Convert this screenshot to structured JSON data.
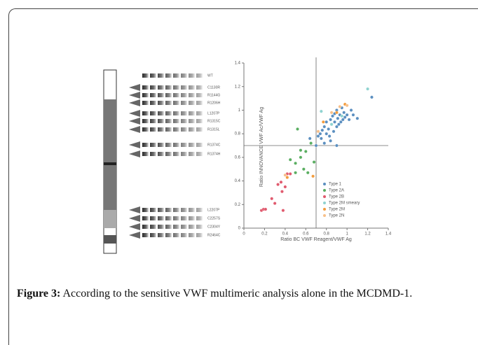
{
  "chart_data": {
    "type": "scatter",
    "xlabel": "Ratio BC VWF Reagent/VWF Ag",
    "ylabel": "Ratio INNOVANCE VWF Ac/VWF Ag",
    "xlim": [
      0,
      1.4
    ],
    "ylim": [
      0,
      1.4
    ],
    "xticks": [
      0,
      0.2,
      0.4,
      0.6,
      0.8,
      1,
      1.2,
      1.4
    ],
    "yticks": [
      0,
      0.2,
      0.4,
      0.6,
      0.8,
      1,
      1.2,
      1.4
    ],
    "reference_lines": {
      "x": 0.7,
      "y": 0.7
    },
    "series": [
      {
        "name": "Type 1",
        "color": "#5b8fc0",
        "x": [
          0.7,
          0.72,
          0.74,
          0.75,
          0.76,
          0.78,
          0.8,
          0.8,
          0.82,
          0.83,
          0.84,
          0.85,
          0.86,
          0.87,
          0.88,
          0.88,
          0.9,
          0.9,
          0.91,
          0.92,
          0.93,
          0.94,
          0.95,
          0.96,
          0.97,
          0.98,
          1.0,
          1.02,
          1.04,
          1.06,
          1.1,
          1.24,
          0.78,
          0.84,
          0.9,
          0.64
        ],
        "values": [
          0.7,
          0.78,
          0.8,
          0.76,
          0.83,
          0.86,
          0.8,
          0.9,
          0.84,
          0.78,
          0.92,
          0.88,
          0.95,
          0.82,
          0.9,
          0.97,
          0.86,
          1.0,
          0.93,
          0.88,
          0.96,
          0.9,
          1.02,
          0.92,
          0.98,
          0.94,
          0.96,
          0.92,
          1.0,
          0.96,
          0.93,
          1.11,
          0.72,
          0.74,
          0.7,
          0.76
        ]
      },
      {
        "name": "Type 2A",
        "color": "#5aae61",
        "x": [
          0.45,
          0.5,
          0.5,
          0.52,
          0.55,
          0.58,
          0.6,
          0.62,
          0.65,
          0.68,
          0.55
        ],
        "values": [
          0.58,
          0.55,
          0.47,
          0.84,
          0.6,
          0.5,
          0.65,
          0.47,
          0.72,
          0.56,
          0.66
        ]
      },
      {
        "name": "Type 2B",
        "color": "#e05a6e",
        "x": [
          0.17,
          0.19,
          0.21,
          0.27,
          0.3,
          0.33,
          0.36,
          0.37,
          0.38,
          0.4,
          0.42,
          0.45
        ],
        "values": [
          0.15,
          0.16,
          0.16,
          0.25,
          0.21,
          0.37,
          0.39,
          0.31,
          0.15,
          0.35,
          0.46,
          0.46
        ]
      },
      {
        "name": "Type 2M smeary",
        "color": "#8fd3d0",
        "x": [
          0.75,
          0.85,
          0.95,
          1.2
        ],
        "values": [
          0.99,
          0.88,
          0.95,
          1.18
        ]
      },
      {
        "name": "Type 2M",
        "color": "#f39c3d",
        "x": [
          0.42,
          0.67,
          0.77,
          0.9,
          0.98
        ],
        "values": [
          0.43,
          0.44,
          0.9,
          0.98,
          1.05
        ]
      },
      {
        "name": "Type 2N",
        "color": "#f7c08a",
        "x": [
          0.4,
          0.72,
          0.85,
          0.93,
          1.0
        ],
        "values": [
          0.45,
          0.82,
          0.98,
          1.03,
          1.04
        ]
      }
    ]
  },
  "gel": {
    "lanes": [
      "WT",
      "C1130R",
      "R1144G",
      "R1206H",
      "L1207P",
      "R1315C",
      "R1315L",
      "R1374C",
      "R1374H",
      "L2207P",
      "C2257S",
      "C2304Y",
      "R2464C"
    ]
  },
  "caption": {
    "label": "Figure 3:",
    "text": " According to the sensitive VWF multimeric analysis alone in the MCDMD-1."
  }
}
